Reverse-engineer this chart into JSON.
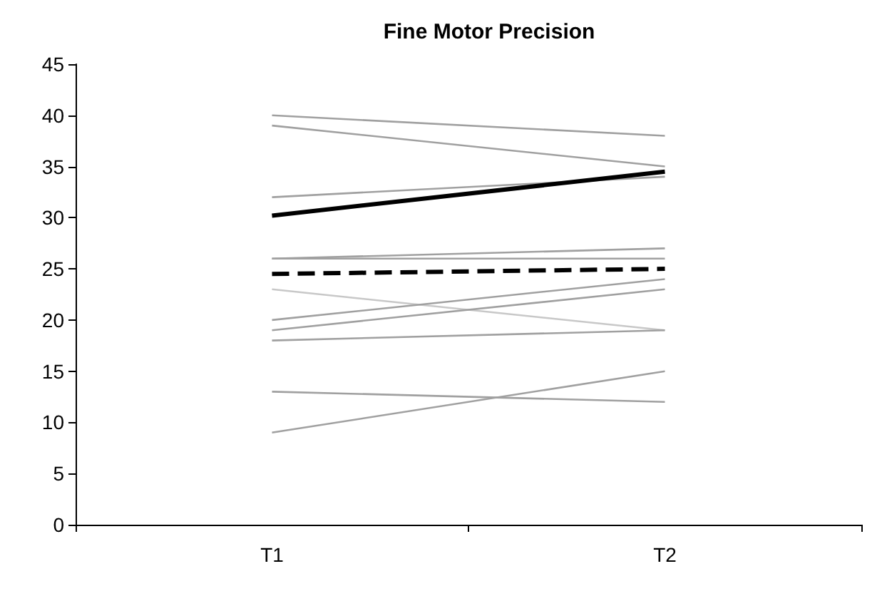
{
  "chart_data": {
    "type": "line",
    "title": "Fine Motor Precision",
    "categories": [
      "T1",
      "T2"
    ],
    "ylim": [
      0,
      45
    ],
    "yticks": [
      0,
      5,
      10,
      15,
      20,
      25,
      30,
      35,
      40,
      45
    ],
    "grid": false,
    "marker": "none",
    "series": [
      {
        "color": "#a0a0a0",
        "values": [
          40,
          38
        ]
      },
      {
        "color": "#a0a0a0",
        "values": [
          39,
          35
        ]
      },
      {
        "color": "#a0a0a0",
        "values": [
          32,
          34
        ]
      },
      {
        "color": "#a0a0a0",
        "values": [
          26,
          27
        ]
      },
      {
        "color": "#a0a0a0",
        "values": [
          26,
          26
        ]
      },
      {
        "color": "#c8c8c8",
        "values": [
          23,
          19
        ]
      },
      {
        "color": "#a0a0a0",
        "values": [
          20,
          24
        ]
      },
      {
        "color": "#a0a0a0",
        "values": [
          19,
          23
        ]
      },
      {
        "color": "#a0a0a0",
        "values": [
          18,
          19
        ]
      },
      {
        "color": "#a0a0a0",
        "values": [
          13,
          12
        ]
      },
      {
        "color": "#a0a0a0",
        "values": [
          9,
          15
        ]
      },
      {
        "color": "#000000",
        "values": [
          30.2,
          34.5
        ],
        "line_style": "solid"
      },
      {
        "color": "#000000",
        "values": [
          24.5,
          25
        ],
        "line_style": "dashed"
      }
    ]
  }
}
